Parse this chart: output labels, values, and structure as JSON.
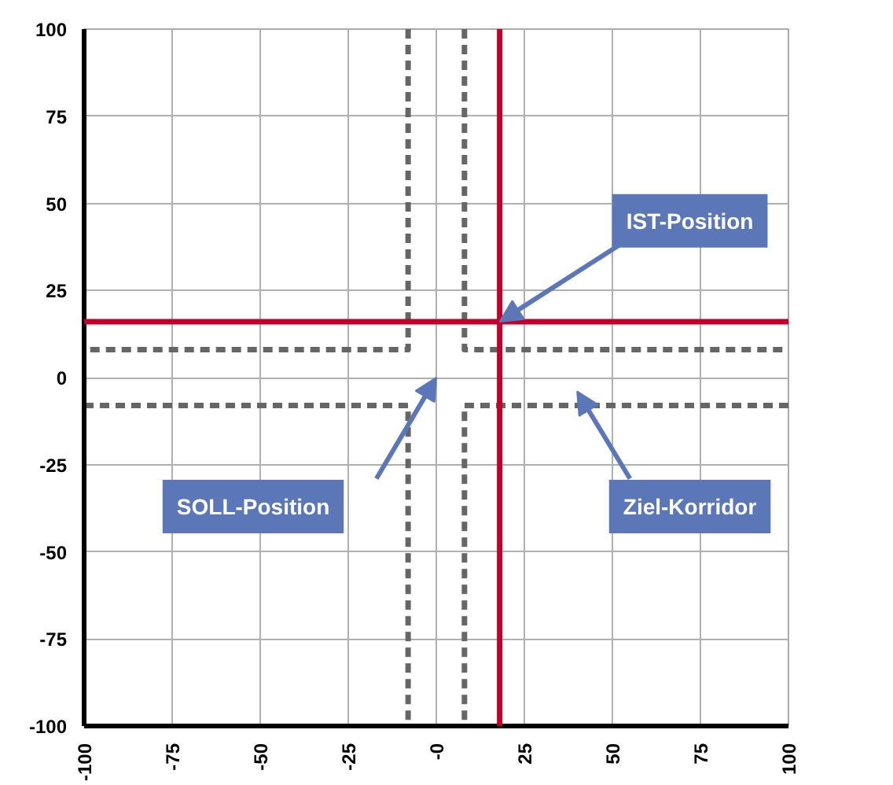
{
  "chart_data": {
    "type": "line",
    "xlim": [
      -100,
      100
    ],
    "ylim": [
      -100,
      100
    ],
    "xticks": [
      {
        "value": -100,
        "label": "-100"
      },
      -75,
      -50,
      -25,
      {
        "value": 0,
        "label": "-0"
      },
      25,
      50,
      75,
      100
    ],
    "yticks": [
      -100,
      -75,
      -50,
      -25,
      0,
      25,
      50,
      75,
      100
    ],
    "grid": true,
    "line_style": "dashed",
    "marker": "none",
    "series": [
      {
        "color": "#666666",
        "x": [
          -8,
          -8,
          -100
        ],
        "values": [
          100,
          8,
          8
        ]
      },
      {
        "color": "#666666",
        "x": [
          8,
          8,
          100
        ],
        "values": [
          100,
          8,
          8
        ]
      },
      {
        "color": "#666666",
        "x": [
          -100,
          -8,
          -8
        ],
        "values": [
          -8,
          -8,
          -100
        ]
      },
      {
        "color": "#666666",
        "x": [
          100,
          8,
          8
        ],
        "values": [
          -8,
          -8,
          -100
        ]
      }
    ],
    "ref_lines": [
      {
        "axis": "x",
        "value": 18,
        "color": "#c0002a",
        "line_style": "solid"
      },
      {
        "axis": "y",
        "value": 16,
        "color": "#c0002a",
        "line_style": "solid"
      }
    ],
    "annotations": [
      {
        "text": "IST-Position",
        "x": 18,
        "y": 16
      },
      "SOLL-Position",
      "Ziel-Korridor"
    ]
  }
}
